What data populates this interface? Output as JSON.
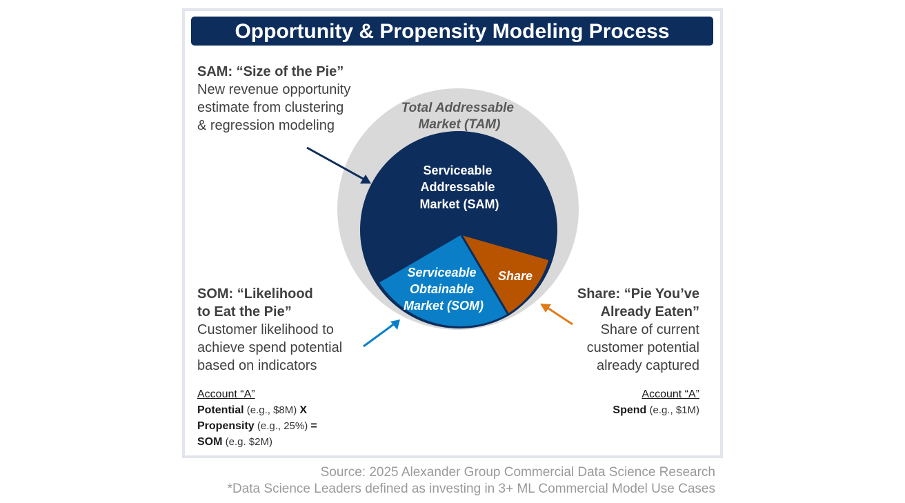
{
  "title": "Opportunity & Propensity Modeling Process",
  "diagram": {
    "tam_label": [
      "Total Addressable",
      "Market (TAM)"
    ],
    "sam_label": [
      "Serviceable",
      "Addressable",
      "Market (SAM)"
    ],
    "som_label": [
      "Serviceable",
      "Obtainable",
      "Market (SOM)"
    ],
    "share_label": "Share"
  },
  "sam": {
    "heading": "SAM: “Size of the Pie”",
    "body": [
      "New revenue opportunity",
      "estimate from clustering",
      "& regression modeling"
    ]
  },
  "som": {
    "heading": [
      "SOM: “Likelihood",
      "to Eat the Pie”"
    ],
    "body": [
      "Customer likelihood to",
      "achieve spend potential",
      "based on indicators"
    ]
  },
  "share": {
    "heading": [
      "Share: “Pie You’ve",
      "Already Eaten”"
    ],
    "body": [
      "Share of current",
      "customer potential",
      "already captured"
    ]
  },
  "calc_left": {
    "account": "Account “A”",
    "line1_bold": "Potential",
    "line1_rest": " (e.g., $8M) ",
    "line1_op": "X",
    "line2_bold": "Propensity",
    "line2_rest": " (e.g., 25%) ",
    "line2_op": "=",
    "line3_bold": "SOM",
    "line3_rest": " (e.g. $2M)"
  },
  "calc_right": {
    "account": "Account “A”",
    "line1_bold": "Spend",
    "line1_rest": " (e.g., $1M)"
  },
  "source": [
    "Source: 2025 Alexander Group Commercial Data Science Research",
    "*Data Science Leaders defined as investing in 3+ ML Commercial Model Use Cases"
  ],
  "colors": {
    "navy": "#0d2d5c",
    "tam_gray": "#d9d9d9",
    "som_blue": "#0a7fc7",
    "share_orange": "#b85400",
    "orange_arrow": "#e07b1a"
  }
}
